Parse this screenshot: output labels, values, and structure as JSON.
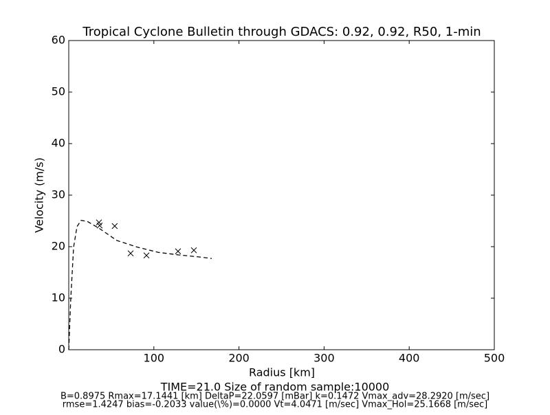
{
  "chart_data": {
    "type": "scatter",
    "title": "Tropical Cyclone Bulletin through GDACS: 0.92, 0.92, R50, 1-min",
    "x_label": "Radius [km]",
    "y_label": "Velocity (m/s)",
    "annotations": [
      "TIME=21.0     Size of random sample:10000",
      "B=0.8975 Rmax=17.1441 [km]  DeltaP=22.0597 [mBar] k=0.1472 Vmax_adv=28.2920 [m/sec]",
      "rmse=1.4247 bias=-0.2033 value(\\%)=0.0000 Vt=4.0471 [m/sec] Vmax_Hol=25.1668 [m/sec]"
    ],
    "xlim": [
      0,
      500
    ],
    "ylim": [
      0,
      60
    ],
    "xticks": [
      100,
      200,
      300,
      400,
      500
    ],
    "yticks": [
      0,
      10,
      20,
      30,
      40,
      50,
      60
    ],
    "series": [
      {
        "type": "scatter",
        "color": "#000000",
        "x": [
          35.5,
          36.3,
          54,
          72.7,
          91.3,
          128.4,
          147
        ],
        "values": [
          24.7,
          24.1,
          24.0,
          18.7,
          18.3,
          19.1,
          19.3
        ]
      },
      {
        "type": "line",
        "color": "#000000",
        "dashed": true,
        "x": [
          0,
          2.4,
          5.7,
          9.7,
          14.5,
          21.8,
          36.3,
          56.5,
          80.8,
          105,
          129,
          153.5,
          168
        ],
        "values": [
          0,
          10,
          19.9,
          23.9,
          25.1,
          24.9,
          23.5,
          21.2,
          19.9,
          18.9,
          18.4,
          18,
          17.7
        ]
      }
    ]
  }
}
